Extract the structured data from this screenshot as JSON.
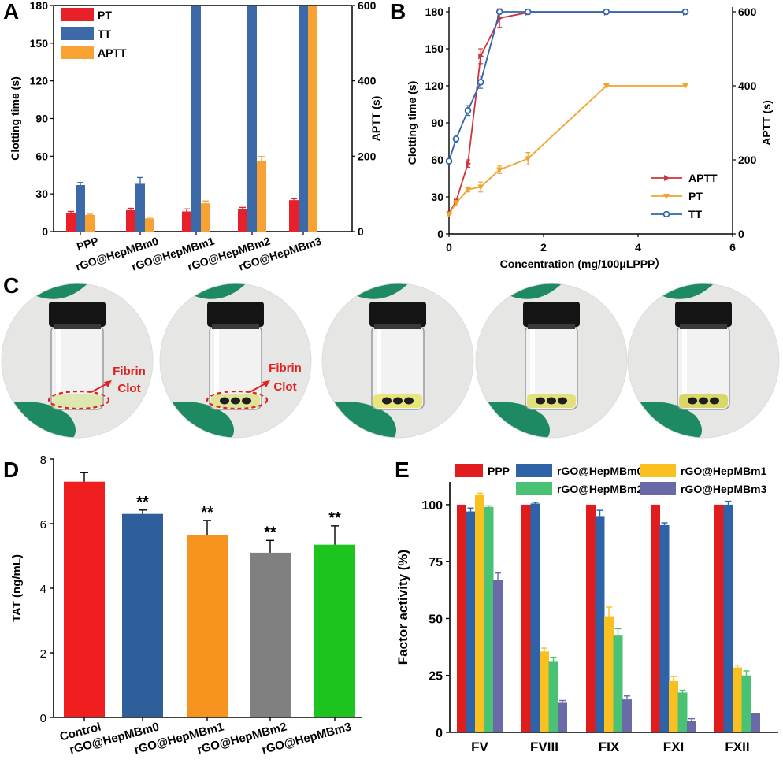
{
  "panels": {
    "A": "A",
    "B": "B",
    "C": "C",
    "D": "D",
    "E": "E"
  },
  "chart_data": [
    {
      "id": "A",
      "type": "bar",
      "categories": [
        "PPP",
        "rGO@HepMBm0",
        "rGO@HepMBm1",
        "rGO@HepMBm2",
        "rGO@HepMBm3"
      ],
      "ylabel": "Clotting time (s)",
      "ylim": [
        0,
        180
      ],
      "yticks": [
        0,
        30,
        60,
        90,
        120,
        150,
        180
      ],
      "y2label": "APTT (s)",
      "y2lim": [
        0,
        600
      ],
      "y2ticks": [
        0,
        200,
        400,
        600
      ],
      "legend_position": "top-left",
      "series": [
        {
          "name": "PT",
          "color": "#e8202a",
          "axis": "left",
          "values": [
            15,
            17,
            16,
            18,
            25
          ],
          "errors": [
            1,
            1.5,
            2,
            1.2,
            1.2
          ]
        },
        {
          "name": "TT",
          "color": "#3c6aa8",
          "axis": "left",
          "values": [
            37,
            38,
            180,
            180,
            180
          ],
          "errors": [
            2,
            5,
            0,
            0,
            0
          ]
        },
        {
          "name": "APTT",
          "color": "#f7a233",
          "axis": "right",
          "values": [
            44,
            35,
            75,
            187,
            600
          ],
          "errors": [
            2,
            3,
            6,
            12,
            0
          ]
        }
      ]
    },
    {
      "id": "B",
      "type": "line",
      "xlabel": "Concentration (mg/100μLPPP）",
      "xlim": [
        0,
        6
      ],
      "xticks": [
        0,
        2,
        4,
        6
      ],
      "ylabel": "Clotting time (s)",
      "ylim": [
        0,
        180
      ],
      "yticks": [
        0,
        30,
        60,
        90,
        120,
        150,
        180
      ],
      "y2label": "APTT (s)",
      "y2lim": [
        0,
        600
      ],
      "y2ticks": [
        0,
        200,
        400,
        600
      ],
      "legend_position": "bottom-right",
      "series": [
        {
          "name": "APTT",
          "color": "#d0353c",
          "marker": "triangle-right",
          "axis": "right",
          "x": [
            0,
            0.15,
            0.4,
            0.67,
            1.07,
            1.67,
            3.33,
            5.0
          ],
          "y": [
            55,
            88,
            190,
            480,
            583,
            598,
            598,
            598
          ],
          "errors": [
            5,
            5,
            10,
            20,
            25,
            5,
            0,
            0
          ]
        },
        {
          "name": "PT",
          "color": "#f0a330",
          "marker": "triangle-down",
          "axis": "left",
          "x": [
            0,
            0.15,
            0.4,
            0.67,
            1.07,
            1.67,
            3.33,
            5.0
          ],
          "y": [
            16,
            25,
            36,
            38,
            52,
            61,
            120,
            120
          ],
          "errors": [
            1,
            2,
            2,
            4,
            3,
            5,
            0,
            0
          ]
        },
        {
          "name": "TT",
          "color": "#2e66ae",
          "marker": "circle",
          "axis": "left",
          "x": [
            0,
            0.15,
            0.4,
            0.67,
            1.07,
            1.67,
            3.33,
            5.0
          ],
          "y": [
            59,
            77,
            100,
            123,
            180,
            180,
            180,
            180
          ],
          "errors": [
            2,
            3,
            4,
            5,
            0,
            0,
            0,
            0
          ]
        }
      ]
    },
    {
      "id": "D",
      "type": "bar",
      "categories": [
        "Control",
        "rGO@HepMBm0",
        "rGO@HepMBm1",
        "rGO@HepMBm2",
        "rGO@HepMBm3"
      ],
      "ylabel": "TAT (ng/mL)",
      "ylim": [
        0,
        8
      ],
      "yticks": [
        0,
        2,
        4,
        6,
        8
      ],
      "values": [
        7.3,
        6.3,
        5.65,
        5.1,
        5.35
      ],
      "errors": [
        0.28,
        0.12,
        0.45,
        0.38,
        0.58
      ],
      "colors": [
        "#f01e1e",
        "#2f5f9b",
        "#f79420",
        "#808080",
        "#1ec41e"
      ],
      "significance": [
        "",
        "**",
        "**",
        "**",
        "**"
      ]
    },
    {
      "id": "E",
      "type": "bar",
      "categories": [
        "FV",
        "FVIII",
        "FIX",
        "FXI",
        "FXII"
      ],
      "ylabel": "Factor activity (%)",
      "ylim": [
        0,
        110
      ],
      "yticks": [
        0,
        25,
        50,
        75,
        100
      ],
      "legend_position": "top",
      "series": [
        {
          "name": "PPP",
          "color": "#e01c1c",
          "values": [
            100,
            100,
            100,
            100,
            100
          ],
          "errors": [
            0,
            0,
            0,
            0,
            0
          ]
        },
        {
          "name": "rGO@HepMBm0",
          "color": "#2e63a8",
          "values": [
            97,
            100.5,
            95,
            91,
            100
          ],
          "errors": [
            1.5,
            0.5,
            2.5,
            1,
            1.5
          ]
        },
        {
          "name": "rGO@HepMBm1",
          "color": "#f9c020",
          "values": [
            104.5,
            35.5,
            51,
            22.5,
            28.5
          ],
          "errors": [
            0.5,
            1.5,
            4,
            2,
            1
          ]
        },
        {
          "name": "rGO@HepMBm2",
          "color": "#49c273",
          "values": [
            99,
            31,
            42.5,
            17.5,
            25
          ],
          "errors": [
            0.5,
            2,
            3,
            1,
            2
          ]
        },
        {
          "name": "rGO@HepMBm3",
          "color": "#6a6aa8",
          "values": [
            67,
            13,
            14.5,
            5,
            8.5
          ],
          "errors": [
            3,
            1,
            1.5,
            1,
            0
          ]
        }
      ]
    }
  ],
  "photos": {
    "labels": {
      "fibrin1": "Fibrin",
      "clot1": "Clot",
      "fibrin2": "Fibrin",
      "clot2": "Clot"
    },
    "vials": [
      {
        "name": "control",
        "liquid": "#dfe7b0",
        "balls": 0,
        "annotated": true
      },
      {
        "name": "m0",
        "liquid": "#dfe39a",
        "balls": 3,
        "annotated": true
      },
      {
        "name": "m1",
        "liquid": "#e8e57a",
        "balls": 3,
        "annotated": false
      },
      {
        "name": "m2",
        "liquid": "#e3df7a",
        "balls": 3,
        "annotated": false
      },
      {
        "name": "m3",
        "liquid": "#d9d66a",
        "balls": 3,
        "annotated": false
      }
    ]
  },
  "colors": {
    "glove": "#1d8a62",
    "cap": "#141414",
    "annotation": "#e0201e"
  }
}
